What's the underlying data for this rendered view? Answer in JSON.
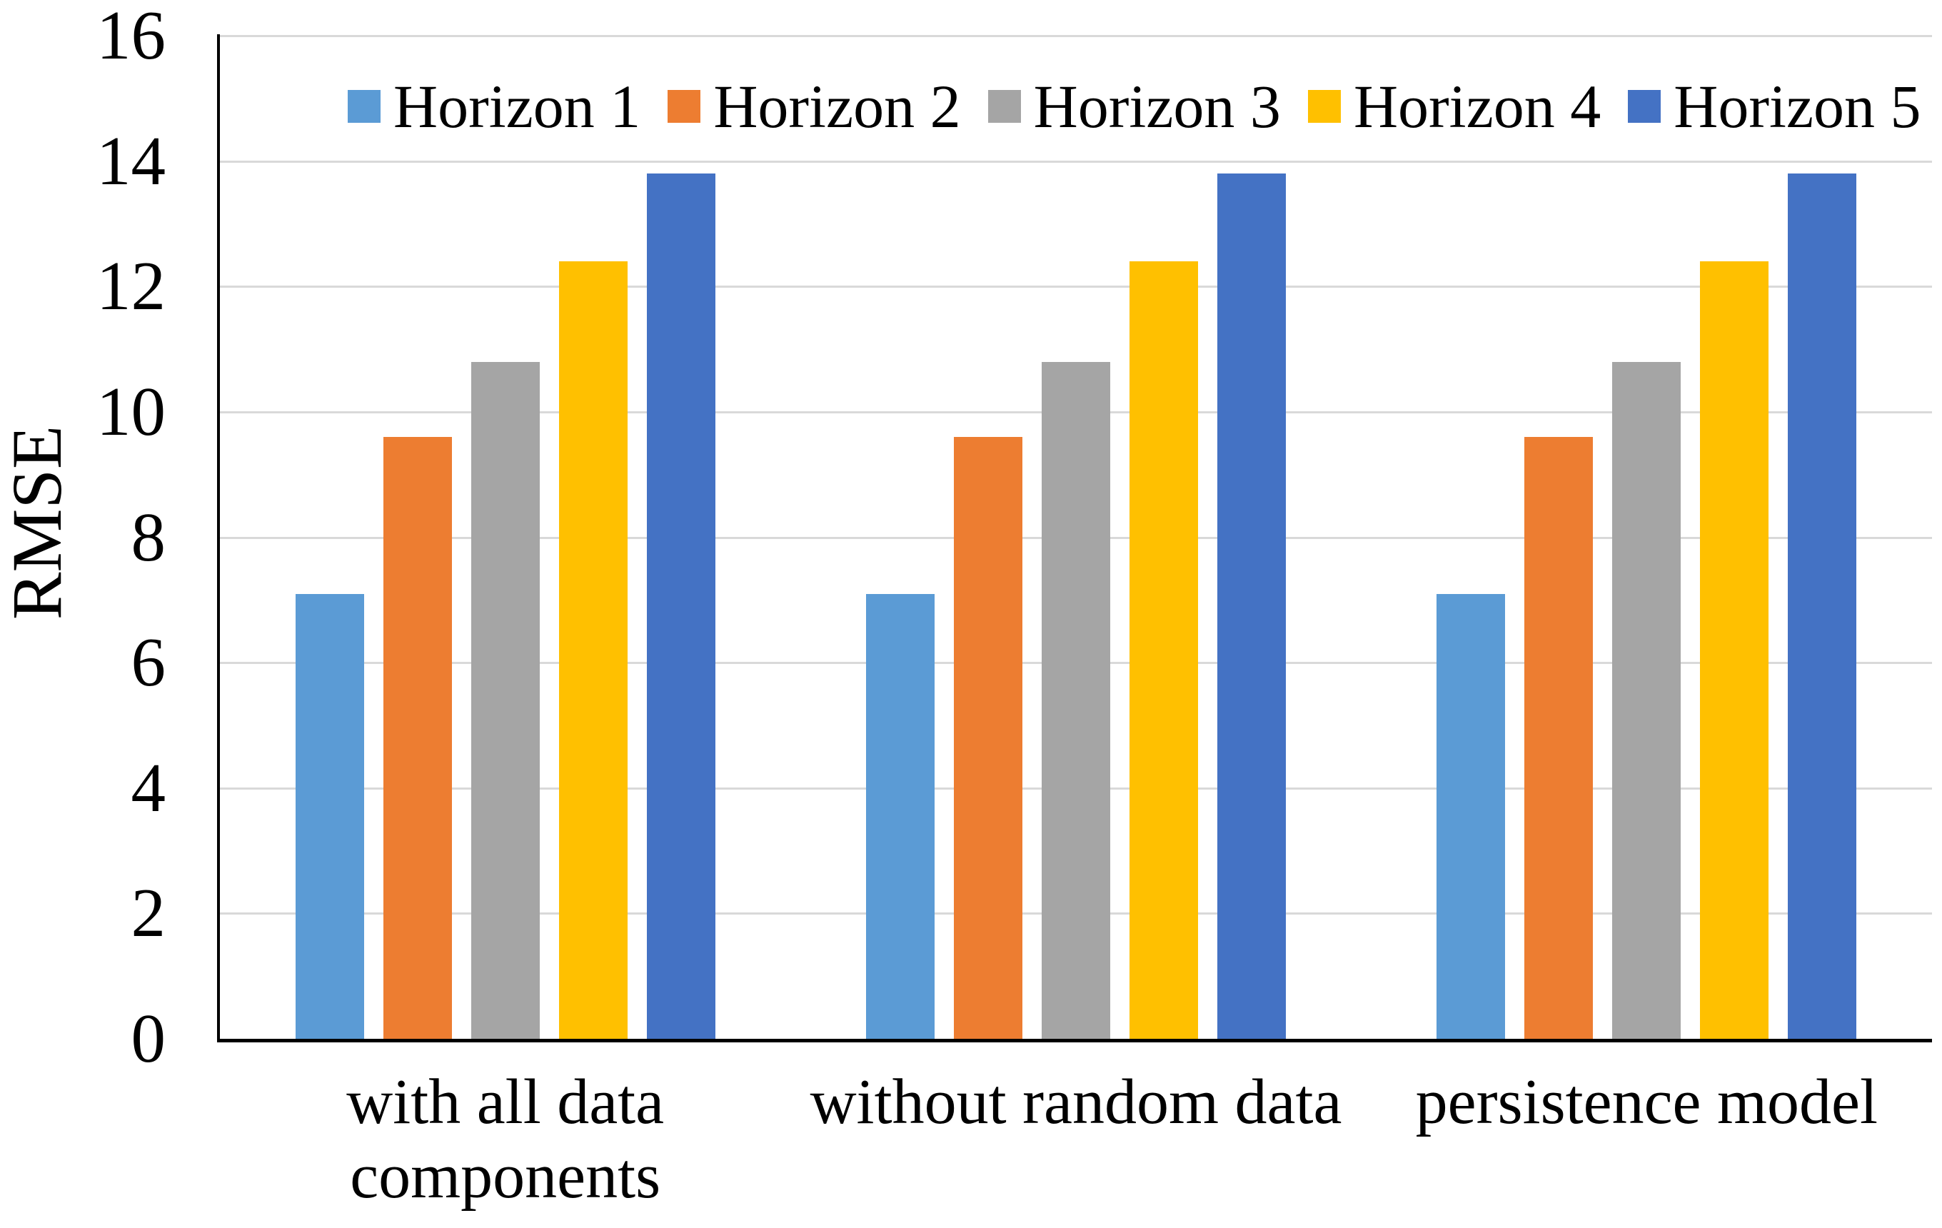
{
  "chart_data": {
    "type": "bar",
    "title": "",
    "ylabel": "RMSE",
    "xlabel": "",
    "ylim": [
      0,
      16
    ],
    "yticks": [
      0,
      2,
      4,
      6,
      8,
      10,
      12,
      14,
      16
    ],
    "grid": true,
    "legend_position": "top-center-inside",
    "categories": [
      "with all data\ncomponents",
      "without random data",
      "persistence model"
    ],
    "series": [
      {
        "name": "Horizon 1",
        "color": "#5B9BD5",
        "values": [
          7.1,
          7.1,
          7.1
        ]
      },
      {
        "name": "Horizon 2",
        "color": "#ED7D31",
        "values": [
          9.6,
          9.6,
          9.6
        ]
      },
      {
        "name": "Horizon 3",
        "color": "#A5A5A5",
        "values": [
          10.8,
          10.8,
          10.8
        ]
      },
      {
        "name": "Horizon 4",
        "color": "#FFC000",
        "values": [
          12.4,
          12.4,
          12.4
        ]
      },
      {
        "name": "Horizon 5",
        "color": "#4472C4",
        "values": [
          13.8,
          13.8,
          13.8
        ]
      }
    ],
    "colors": {
      "background": "#FFFFFF",
      "gridline": "#D9D9D9",
      "axis": "#000000",
      "text": "#000000"
    }
  }
}
